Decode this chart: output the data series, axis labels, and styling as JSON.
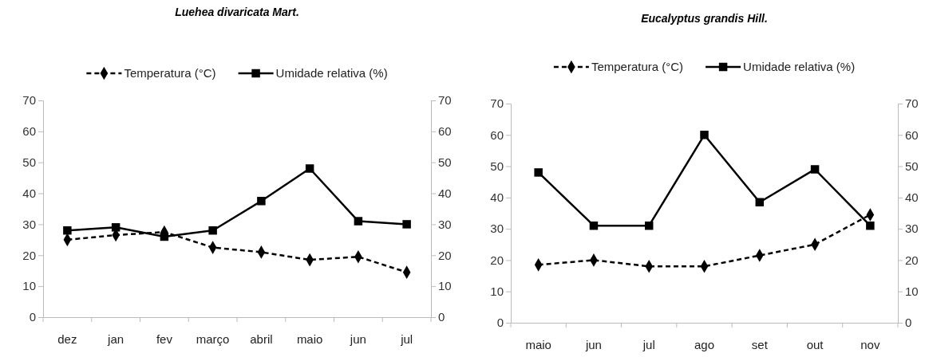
{
  "chart_data": [
    {
      "type": "line",
      "title": "Luehea divaricata Mart.",
      "categories": [
        "dez",
        "jan",
        "fev",
        "março",
        "abril",
        "maio",
        "jun",
        "jul"
      ],
      "series": [
        {
          "name": "Temperatura (°C)",
          "color": "#000000",
          "marker": "diamond",
          "line_style": "dashed",
          "values": [
            25,
            26.5,
            27.5,
            22.5,
            21,
            18.5,
            19.5,
            14.5
          ]
        },
        {
          "name": "Umidade relativa (%)",
          "color": "#000000",
          "marker": "square",
          "line_style": "solid",
          "values": [
            28,
            29,
            26,
            28,
            37.5,
            48,
            31,
            30
          ]
        }
      ],
      "ylim": [
        0,
        70
      ],
      "yticks": [
        0,
        10,
        20,
        30,
        40,
        50,
        60,
        70
      ],
      "y2lim": [
        0,
        70
      ],
      "y2ticks": [
        0,
        10,
        20,
        30,
        40,
        50,
        60,
        70
      ],
      "grid": false,
      "legend": "top"
    },
    {
      "type": "line",
      "title": "Eucalyptus grandis Hill.",
      "categories": [
        "maio",
        "jun",
        "jul",
        "ago",
        "set",
        "out",
        "nov"
      ],
      "series": [
        {
          "name": "Temperatura (°C)",
          "color": "#000000",
          "marker": "diamond",
          "line_style": "dashed",
          "values": [
            18.5,
            20,
            18,
            18,
            21.5,
            25,
            34.5
          ]
        },
        {
          "name": "Umidade relativa (%)",
          "color": "#000000",
          "marker": "square",
          "line_style": "solid",
          "values": [
            48,
            31,
            31,
            60,
            38.5,
            49,
            31
          ]
        }
      ],
      "ylim": [
        0,
        70
      ],
      "yticks": [
        0,
        10,
        20,
        30,
        40,
        50,
        60,
        70
      ],
      "y2lim": [
        0,
        70
      ],
      "y2ticks": [
        0,
        10,
        20,
        30,
        40,
        50,
        60,
        70
      ],
      "grid": false,
      "legend": "top"
    }
  ]
}
